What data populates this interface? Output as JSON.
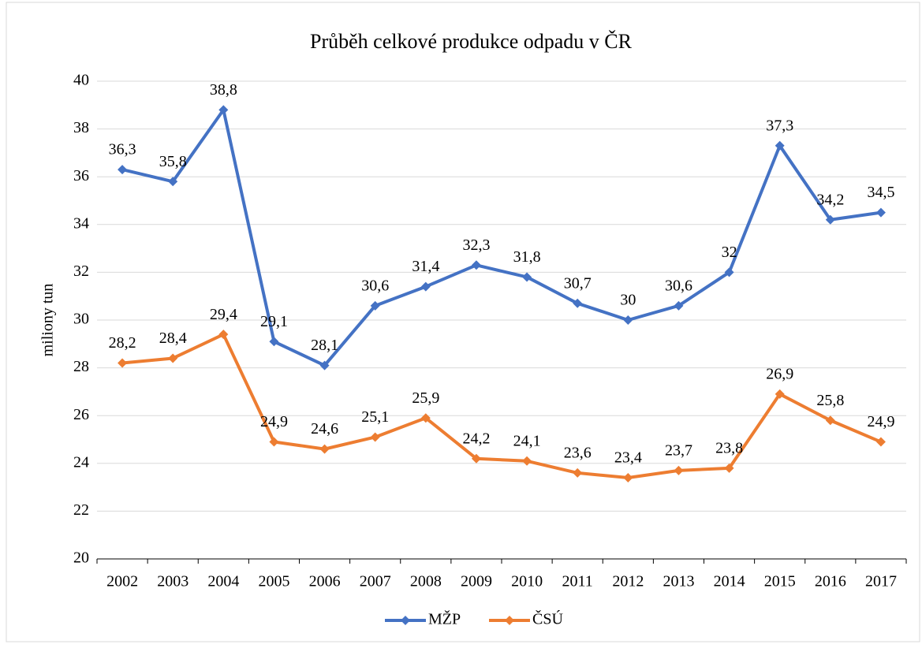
{
  "chart_data": {
    "type": "line",
    "title": "Průběh celkové produkce odpadu v ČR",
    "ylabel": "miliony tun",
    "categories": [
      "2002",
      "2003",
      "2004",
      "2005",
      "2006",
      "2007",
      "2008",
      "2009",
      "2010",
      "2011",
      "2012",
      "2013",
      "2014",
      "2015",
      "2016",
      "2017"
    ],
    "series": [
      {
        "name": "MŽP",
        "color": "#4472c4",
        "values": [
          36.3,
          35.8,
          38.8,
          29.1,
          28.1,
          30.6,
          31.4,
          32.3,
          31.8,
          30.7,
          30,
          30.6,
          32,
          37.3,
          34.2,
          34.5
        ],
        "value_labels": [
          "36,3",
          "35,8",
          "38,8",
          "29,1",
          "28,1",
          "30,6",
          "31,4",
          "32,3",
          "31,8",
          "30,7",
          "30",
          "30,6",
          "32",
          "37,3",
          "34,2",
          "34,5"
        ]
      },
      {
        "name": "ČSÚ",
        "color": "#ed7d31",
        "values": [
          28.2,
          28.4,
          29.4,
          24.9,
          24.6,
          25.1,
          25.9,
          24.2,
          24.1,
          23.6,
          23.4,
          23.7,
          23.8,
          26.9,
          25.8,
          24.9
        ],
        "value_labels": [
          "28,2",
          "28,4",
          "29,4",
          "24,9",
          "24,6",
          "25,1",
          "25,9",
          "24,2",
          "24,1",
          "23,6",
          "23,4",
          "23,7",
          "23,8",
          "26,9",
          "25,8",
          "24,9"
        ]
      }
    ],
    "ylim": [
      20,
      40
    ],
    "yticks": [
      20,
      22,
      24,
      26,
      28,
      30,
      32,
      34,
      36,
      38,
      40
    ],
    "grid": true,
    "legend": "bottom"
  }
}
